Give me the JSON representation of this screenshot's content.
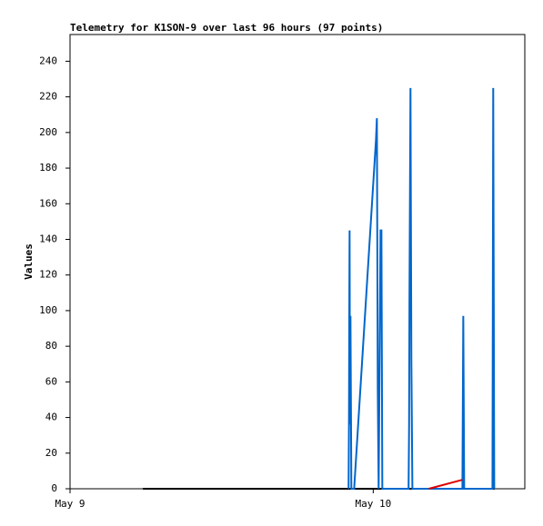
{
  "chart_data": {
    "type": "line",
    "title": "Telemetry for K1SON-9 over last 96 hours (97 points)",
    "y_label": "Values",
    "xlim": [
      0,
      36
    ],
    "ylim": [
      0,
      255
    ],
    "xticks": [
      {
        "value": 0,
        "label": "May 9"
      },
      {
        "value": 24,
        "label": "May 10"
      }
    ],
    "yticks": [
      0,
      20,
      40,
      60,
      80,
      100,
      120,
      140,
      160,
      180,
      200,
      220,
      240
    ],
    "series": [
      {
        "color": "#000000",
        "x": [
          5.77,
          33.6
        ],
        "values": [
          0,
          0
        ]
      },
      {
        "color": "#0066cc",
        "x": [
          22.05,
          22.08,
          22.11,
          22.13,
          22.16,
          22.2,
          22.27,
          22.34,
          22.49,
          24.22,
          24.29,
          24.36,
          24.43,
          24.58,
          24.65,
          24.72,
          26.8,
          26.84,
          26.87,
          26.95,
          27.02,
          27.1,
          31.06,
          31.13,
          31.2,
          33.44,
          33.5,
          33.58
        ],
        "values": [
          0,
          36,
          108,
          145,
          36,
          97,
          0,
          0,
          0,
          196,
          208,
          56,
          0,
          145,
          145,
          0,
          0,
          36,
          108,
          225,
          72,
          0,
          0,
          97,
          0,
          0,
          225,
          0
        ]
      },
      {
        "color": "#dd0000",
        "x": [
          28.4,
          31.05
        ],
        "values": [
          0,
          5
        ]
      }
    ]
  }
}
